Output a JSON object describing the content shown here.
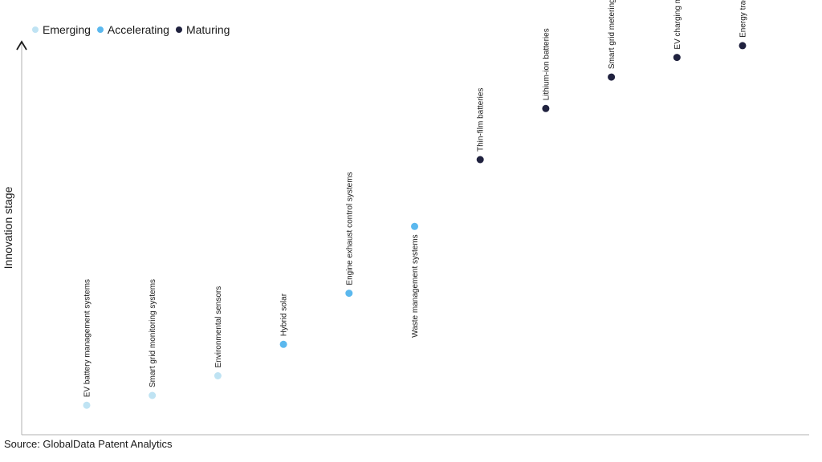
{
  "chart_data": {
    "type": "scatter",
    "title": "",
    "xlabel": "",
    "ylabel": "Innovation stage",
    "legend": {
      "placement": "top-left",
      "entries": [
        {
          "name": "Emerging",
          "color": "#bfe3f3"
        },
        {
          "name": "Accelerating",
          "color": "#5bb8ee"
        },
        {
          "name": "Maturing",
          "color": "#20223f"
        }
      ]
    },
    "x": [
      1,
      2,
      3,
      4,
      5,
      6,
      7,
      8,
      9,
      10,
      11
    ],
    "ylim": [
      0,
      100
    ],
    "points": [
      {
        "label": "EV battery management systems",
        "x": 1,
        "y": 7.5,
        "stage": "Emerging"
      },
      {
        "label": "Smart grid monitoring systems",
        "x": 2,
        "y": 10,
        "stage": "Emerging"
      },
      {
        "label": "Environmental sensors",
        "x": 3,
        "y": 15,
        "stage": "Emerging"
      },
      {
        "label": "Hybrid solar",
        "x": 4,
        "y": 23,
        "stage": "Accelerating"
      },
      {
        "label": "Engine exhaust control systems",
        "x": 5,
        "y": 36,
        "stage": "Accelerating"
      },
      {
        "label": "Waste management systems",
        "x": 6,
        "y": 53,
        "stage": "Accelerating"
      },
      {
        "label": "Thin-film batteries",
        "x": 7,
        "y": 70,
        "stage": "Maturing"
      },
      {
        "label": "Lithium-ion batteries",
        "x": 8,
        "y": 83,
        "stage": "Maturing"
      },
      {
        "label": "Smart grid metering",
        "x": 9,
        "y": 91,
        "stage": "Maturing"
      },
      {
        "label": "EV charging metering automation",
        "x": 10,
        "y": 96,
        "stage": "Maturing"
      },
      {
        "label": "Energy trading platforms",
        "x": 11,
        "y": 99,
        "stage": "Maturing"
      }
    ]
  },
  "source": "Source: GlobalData Patent Analytics"
}
